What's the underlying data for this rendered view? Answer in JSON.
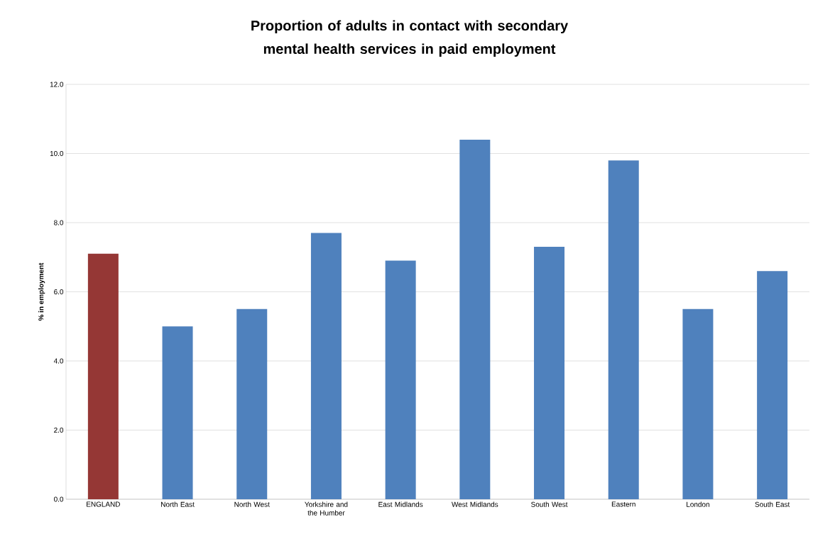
{
  "chart_data": {
    "type": "bar",
    "title": "Proportion of adults in contact with secondary mental health services in paid employment",
    "ylabel": "% in employment",
    "categories": [
      "ENGLAND",
      "North East",
      "North West",
      "Yorkshire and the Humber",
      "East Midlands",
      "West Midlands",
      "South West",
      "Eastern",
      "London",
      "South East"
    ],
    "values": [
      7.1,
      5.0,
      5.5,
      7.7,
      6.9,
      10.4,
      7.3,
      9.8,
      5.5,
      6.6
    ],
    "colors": [
      "#953735",
      "#4f81bd",
      "#4f81bd",
      "#4f81bd",
      "#4f81bd",
      "#4f81bd",
      "#4f81bd",
      "#4f81bd",
      "#4f81bd",
      "#4f81bd"
    ],
    "ylim": [
      0,
      12
    ],
    "yticks": [
      {
        "value": 0,
        "label": "0.0"
      },
      {
        "value": 2,
        "label": "2.0"
      },
      {
        "value": 4,
        "label": "4.0"
      },
      {
        "value": 6,
        "label": "6.0"
      },
      {
        "value": 8,
        "label": "8.0"
      },
      {
        "value": 10,
        "label": "10.0"
      },
      {
        "value": 12,
        "label": "12.0"
      }
    ],
    "grid": "y"
  }
}
